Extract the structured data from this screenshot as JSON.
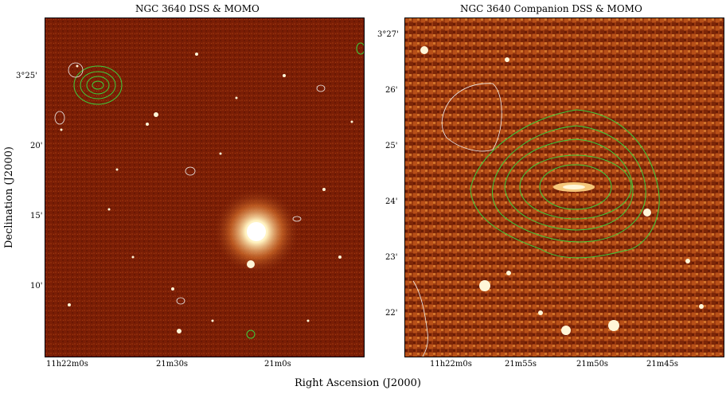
{
  "panels": [
    {
      "title": "NGC 3640 DSS & MOMO",
      "y_ticks": [
        "3°25'",
        "20'",
        "15'",
        "10'"
      ],
      "x_ticks": [
        "11h22m0s",
        "21m30s",
        "21m0s"
      ]
    },
    {
      "title": "NGC 3640 Companion DSS & MOMO",
      "y_ticks": [
        "3°27'",
        "26'",
        "25'",
        "24'",
        "23'",
        "22'"
      ],
      "x_ticks": [
        "11h22m0s",
        "21m55s",
        "21m50s",
        "21m45s"
      ]
    }
  ],
  "axes": {
    "ylabel": "Declination (J2000)",
    "xlabel": "Right Ascension (J2000)"
  },
  "colors": {
    "sky_background": "#7a1e05",
    "star": "#fff6d8",
    "contour": "#3ccf3c",
    "negative_contour": "#f0f0f0"
  }
}
